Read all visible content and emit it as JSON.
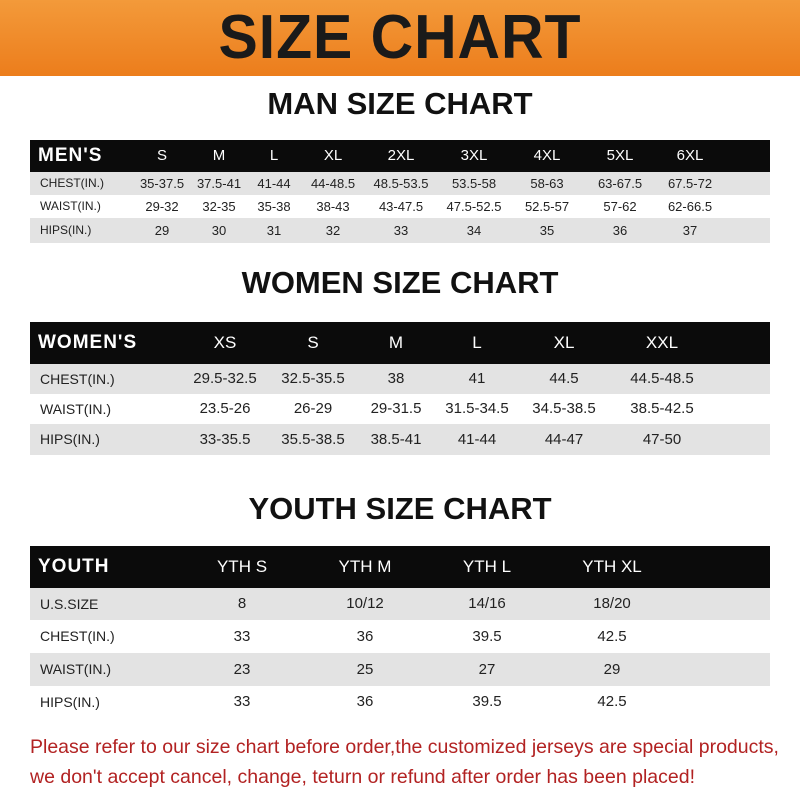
{
  "banner_title": "SIZE CHART",
  "men": {
    "title": "MAN SIZE CHART",
    "header": "MEN'S",
    "sizes": [
      "S",
      "M",
      "L",
      "XL",
      "2XL",
      "3XL",
      "4XL",
      "5XL",
      "6XL"
    ],
    "rows": [
      {
        "label": "CHEST(IN.)",
        "values": [
          "35-37.5",
          "37.5-41",
          "41-44",
          "44-48.5",
          "48.5-53.5",
          "53.5-58",
          "58-63",
          "63-67.5",
          "67.5-72"
        ]
      },
      {
        "label": "WAIST(IN.)",
        "values": [
          "29-32",
          "32-35",
          "35-38",
          "38-43",
          "43-47.5",
          "47.5-52.5",
          "52.5-57",
          "57-62",
          "62-66.5"
        ]
      },
      {
        "label": "HIPS(IN.)",
        "values": [
          "29",
          "30",
          "31",
          "32",
          "33",
          "34",
          "35",
          "36",
          "37"
        ]
      }
    ]
  },
  "women": {
    "title": "WOMEN SIZE CHART",
    "header": "WOMEN'S",
    "sizes": [
      "XS",
      "S",
      "M",
      "L",
      "XL",
      "XXL"
    ],
    "rows": [
      {
        "label": "CHEST(IN.)",
        "values": [
          "29.5-32.5",
          "32.5-35.5",
          "38",
          "41",
          "44.5",
          "44.5-48.5"
        ]
      },
      {
        "label": "WAIST(IN.)",
        "values": [
          "23.5-26",
          "26-29",
          "29-31.5",
          "31.5-34.5",
          "34.5-38.5",
          "38.5-42.5"
        ]
      },
      {
        "label": "HIPS(IN.)",
        "values": [
          "33-35.5",
          "35.5-38.5",
          "38.5-41",
          "41-44",
          "44-47",
          "47-50"
        ]
      }
    ]
  },
  "youth": {
    "title": "YOUTH SIZE CHART",
    "header": "YOUTH",
    "sizes": [
      "YTH S",
      "YTH M",
      "YTH L",
      "YTH XL"
    ],
    "rows": [
      {
        "label": "U.S.SIZE",
        "values": [
          "8",
          "10/12",
          "14/16",
          "18/20"
        ]
      },
      {
        "label": "CHEST(IN.)",
        "values": [
          "33",
          "36",
          "39.5",
          "42.5"
        ]
      },
      {
        "label": "WAIST(IN.)",
        "values": [
          "23",
          "25",
          "27",
          "29"
        ]
      },
      {
        "label": "HIPS(IN.)",
        "values": [
          "33",
          "36",
          "39.5",
          "42.5"
        ]
      }
    ]
  },
  "notice": [
    "Please refer to our size chart before order,the customized jerseys are special products,",
    "we don't accept cancel, change, teturn or refund after order has been placed!"
  ]
}
